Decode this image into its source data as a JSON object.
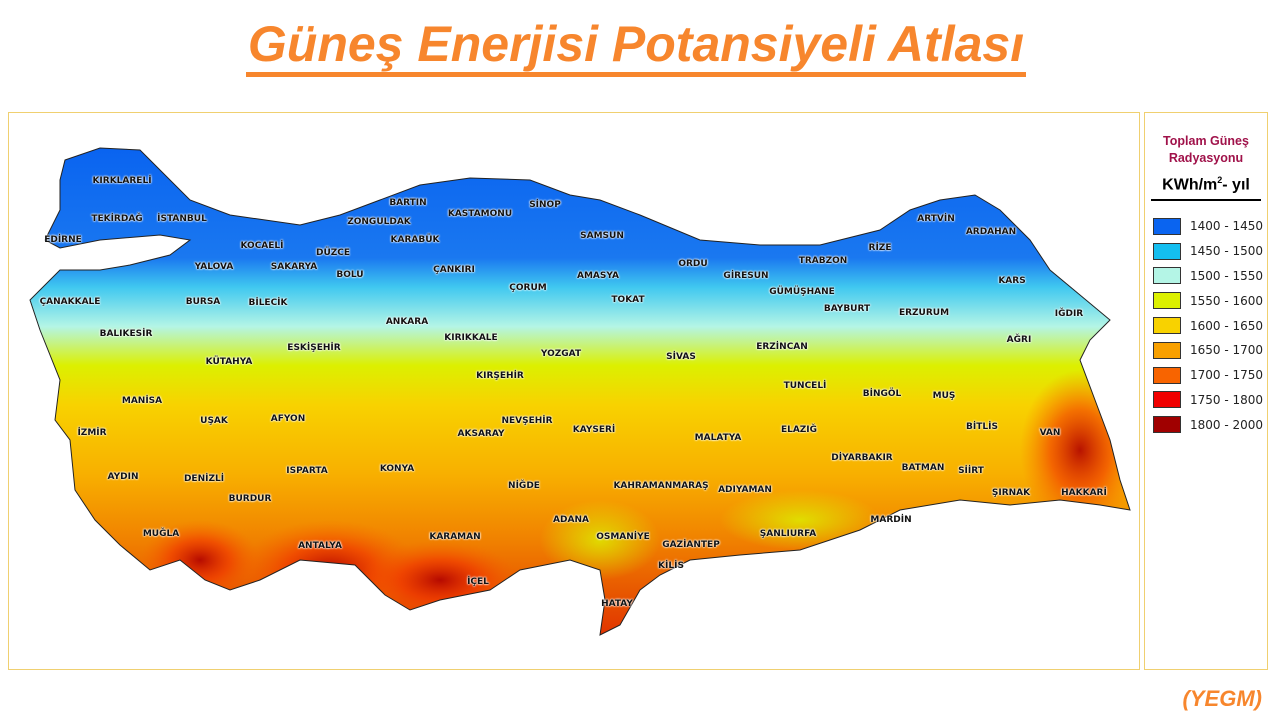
{
  "title": "Güneş Enerjisi Potansiyeli Atlası",
  "source": "(YEGM)",
  "legend": {
    "title_line1": "Toplam Güneş",
    "title_line2": "Radyasyonu",
    "unit_main": "KWh/m",
    "unit_sup": "2",
    "unit_tail": "- yıl",
    "items": [
      {
        "label": "1400 - 1450",
        "color": "#0a64f0"
      },
      {
        "label": "1450 - 1500",
        "color": "#14bef0"
      },
      {
        "label": "1500 - 1550",
        "color": "#b4f5e6"
      },
      {
        "label": "1550 - 1600",
        "color": "#dcf000"
      },
      {
        "label": "1600 - 1650",
        "color": "#f8d200"
      },
      {
        "label": "1650 - 1700",
        "color": "#f8a000"
      },
      {
        "label": "1700 - 1750",
        "color": "#f86400"
      },
      {
        "label": "1750 - 1800",
        "color": "#f00000"
      },
      {
        "label": "1800 - 2000",
        "color": "#a00000"
      }
    ]
  },
  "cities": [
    "KIRKLARELİ",
    "TEKİRDAĞ",
    "İSTANBUL",
    "EDİRNE",
    "KOCAELİ",
    "YALOVA",
    "SAKARYA",
    "DÜZCE",
    "BOLU",
    "ZONGULDAK",
    "BARTIN",
    "KARABÜK",
    "KASTAMONU",
    "SİNOP",
    "SAMSUN",
    "ÇANKIRI",
    "ÇORUM",
    "AMASYA",
    "TOKAT",
    "ORDU",
    "GİRESUN",
    "TRABZON",
    "RİZE",
    "ARTVİN",
    "ARDAHAN",
    "KARS",
    "IĞDIR",
    "AĞRI",
    "ERZURUM",
    "BAYBURT",
    "GÜMÜŞHANE",
    "ERZİNCAN",
    "TUNCELİ",
    "BİNGÖL",
    "MUŞ",
    "BİTLİS",
    "VAN",
    "HAKKARİ",
    "ŞIRNAK",
    "SİİRT",
    "BATMAN",
    "DİYARBAKIR",
    "MARDİN",
    "ŞANLIURFA",
    "ADIYAMAN",
    "MALATYA",
    "ELAZIĞ",
    "KAHRAMANMARAŞ",
    "GAZİANTEP",
    "KİLİS",
    "HATAY",
    "OSMANİYE",
    "ADANA",
    "KAYSERİ",
    "SİVAS",
    "YOZGAT",
    "KIRŞEHİR",
    "KIRIKKALE",
    "ANKARA",
    "NEVŞEHİR",
    "AKSARAY",
    "NİĞDE",
    "KONYA",
    "KARAMAN",
    "İÇEL",
    "ANTALYA",
    "BURDUR",
    "ISPARTA",
    "AFYON",
    "UŞAK",
    "KÜTAHYA",
    "ESKİŞEHİR",
    "BİLECİK",
    "BURSA",
    "BALIKESİR",
    "ÇANAKKALE",
    "MANİSA",
    "İZMİR",
    "AYDIN",
    "DENİZLİ",
    "MUĞLA"
  ]
}
